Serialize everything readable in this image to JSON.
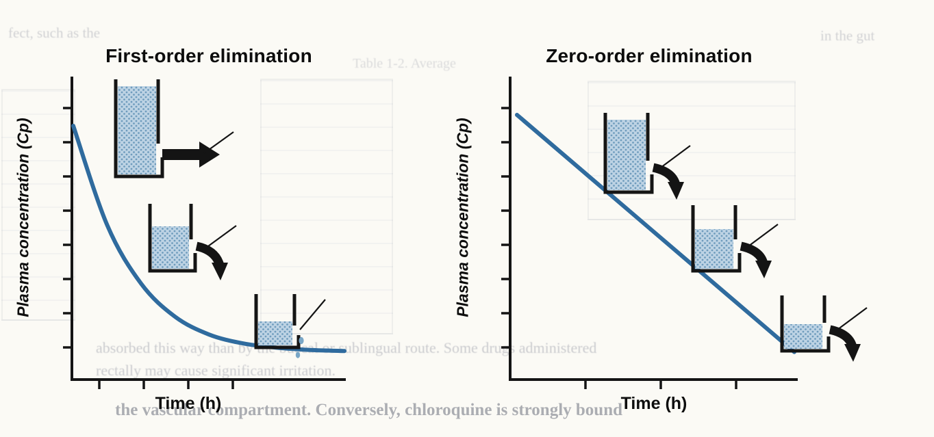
{
  "figure": {
    "kind": "pharmacokinetics elimination figure",
    "panels": [
      "First-order elimination",
      "Zero-order elimination"
    ]
  },
  "chart_data": [
    {
      "type": "line",
      "title": "First-order elimination",
      "xlabel": "Time (h)",
      "ylabel": "Plasma concentration (Cp)",
      "x": [
        0,
        1,
        2,
        3,
        4,
        5,
        6,
        7,
        8
      ],
      "y": [
        100,
        61,
        38,
        25,
        18,
        14.5,
        12.8,
        11.9,
        11.5
      ],
      "xlim": [
        0,
        8
      ],
      "ylim": [
        0,
        100
      ],
      "grid": false,
      "legend": "none",
      "axis_tick_labels": "none",
      "curve_shape": "exponential decay",
      "annotations": [
        "nearly full beaker with large straight outflow arrow (rate proportional to concentration)",
        "half-full beaker with medium curved outflow arrow",
        "nearly empty beaker with only drips (slow outflow)"
      ]
    },
    {
      "type": "line",
      "title": "Zero-order elimination",
      "xlabel": "Time (h)",
      "ylabel": "Plasma concentration (Cp)",
      "x": [
        0,
        1,
        2,
        3,
        4,
        5,
        6,
        7,
        8
      ],
      "y": [
        100,
        89,
        78,
        67,
        56,
        45,
        34,
        23,
        12
      ],
      "xlim": [
        0,
        8
      ],
      "ylim": [
        0,
        100
      ],
      "grid": false,
      "legend": "none",
      "axis_tick_labels": "none",
      "curve_shape": "linear decline",
      "annotations": [
        "full beaker with constant-size curved outflow arrow",
        "half-full beaker with constant-size curved outflow arrow",
        "low beaker with constant-size curved outflow arrow"
      ]
    }
  ],
  "colors": {
    "curve": "#2f6b9e",
    "beaker_fill": "#bdd3e4",
    "beaker_dot": "#6f9cbd",
    "drip": "#79a6c6",
    "axis": "#141414",
    "paper": "#fbfaf5"
  },
  "ghost_text": {
    "lines": [
      "fect, such as the",
      "Table 1-2. Average",
      "in the gut",
      "absorbed this way than by the buccal or sublingual route. Some drugs administered",
      "rectally may cause significant irritation.",
      "the vascular compartment. Conversely, chloroquine is strongly bound"
    ]
  }
}
